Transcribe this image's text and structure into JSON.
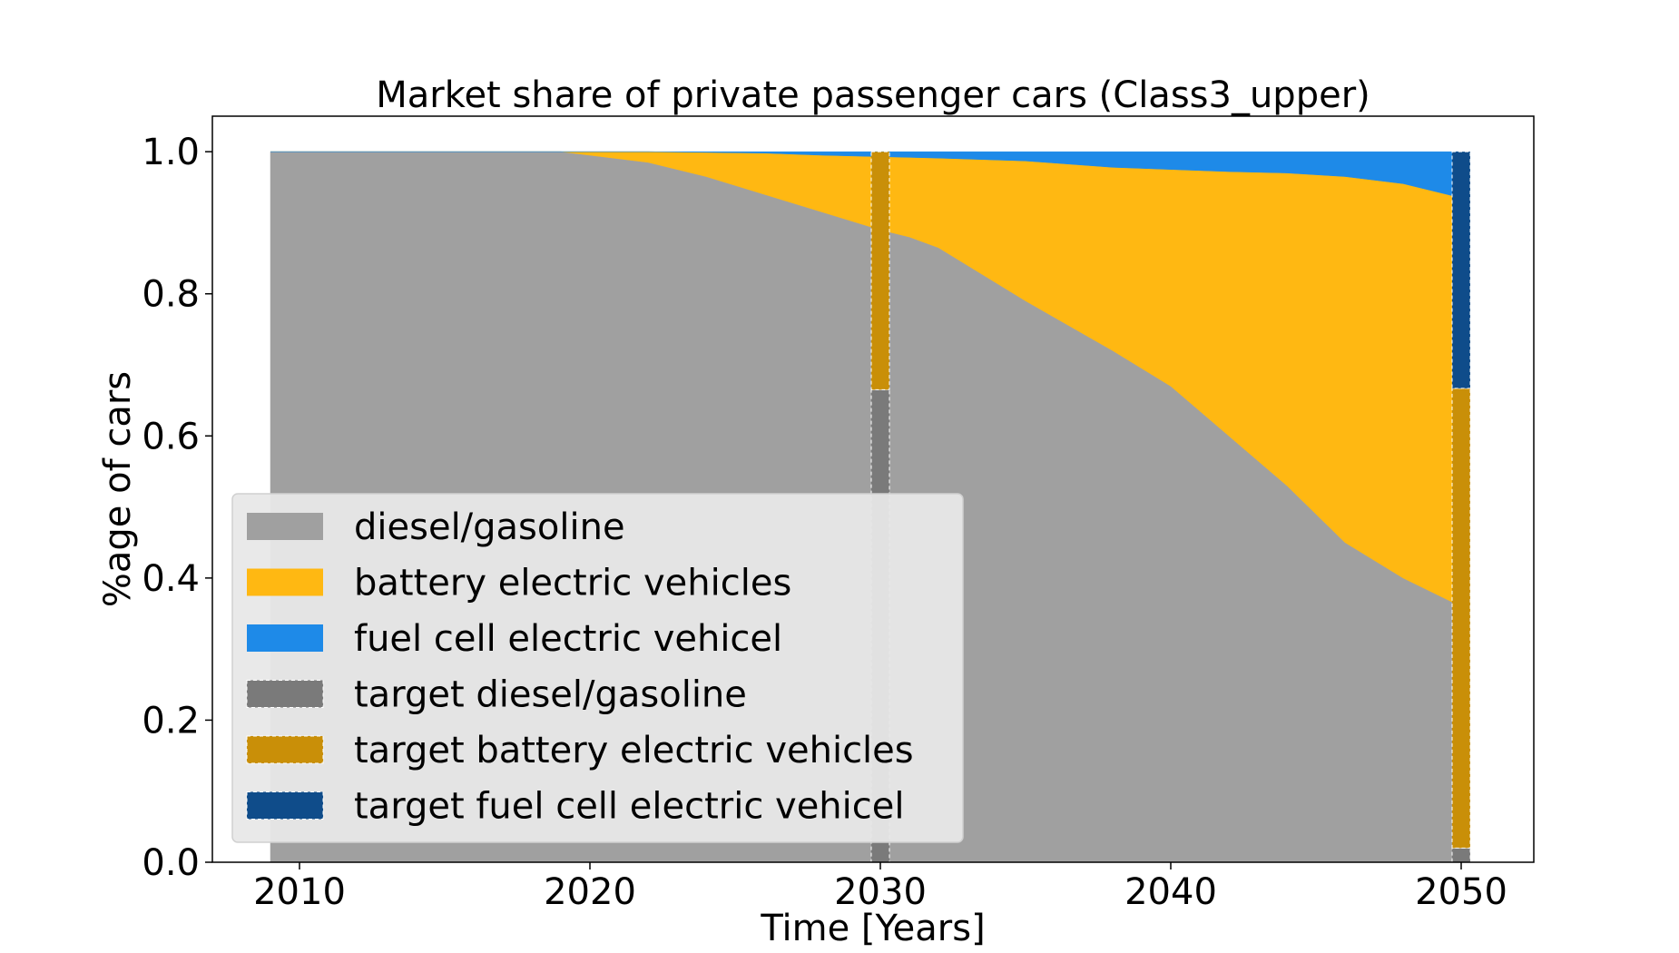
{
  "chart_data": {
    "type": "area",
    "title": "Market share of private passenger cars (Class3_upper)",
    "xlabel": "Time [Years]",
    "ylabel": "%age of cars",
    "xlim": [
      2007,
      2052.5
    ],
    "ylim": [
      0.0,
      1.05
    ],
    "xticks": [
      2010,
      2020,
      2030,
      2040,
      2050
    ],
    "xtick_labels": [
      "2010",
      "2020",
      "2030",
      "2040",
      "2050"
    ],
    "yticks": [
      0.0,
      0.2,
      0.4,
      0.6,
      0.8,
      1.0
    ],
    "ytick_labels": [
      "0.0",
      "0.2",
      "0.4",
      "0.6",
      "0.8",
      "1.0"
    ],
    "grid": false,
    "legend_position": "lower-left",
    "x": [
      2009,
      2019,
      2020,
      2022,
      2024,
      2026,
      2028,
      2030,
      2031,
      2032,
      2035,
      2038,
      2040,
      2042,
      2044,
      2046,
      2048,
      2050
    ],
    "series": [
      {
        "name": "diesel/gasoline",
        "color": "#a0a0a0",
        "values": [
          1.0,
          1.0,
          0.995,
          0.985,
          0.965,
          0.94,
          0.915,
          0.89,
          0.88,
          0.865,
          0.79,
          0.72,
          0.67,
          0.6,
          0.53,
          0.45,
          0.4,
          0.36
        ]
      },
      {
        "name": "battery electric vehicles",
        "color": "#ffb812",
        "values": [
          0.0,
          0.0,
          0.005,
          0.015,
          0.034,
          0.058,
          0.08,
          0.103,
          0.112,
          0.126,
          0.197,
          0.258,
          0.305,
          0.372,
          0.44,
          0.515,
          0.555,
          0.575
        ]
      },
      {
        "name": "fuel cell electric vehicel",
        "color": "#1e8ae8",
        "values": [
          0.0,
          0.0,
          0.0,
          0.0,
          0.001,
          0.002,
          0.005,
          0.007,
          0.008,
          0.009,
          0.013,
          0.022,
          0.025,
          0.028,
          0.03,
          0.035,
          0.045,
          0.065
        ]
      }
    ],
    "targets": [
      {
        "year": 2030,
        "values": {
          "target diesel/gasoline": 0.665,
          "target battery electric vehicles": 0.335,
          "target fuel cell electric vehicel": 0.0
        }
      },
      {
        "year": 2050,
        "values": {
          "target diesel/gasoline": 0.02,
          "target battery electric vehicles": 0.647,
          "target fuel cell electric vehicel": 0.333
        }
      }
    ],
    "target_series": [
      {
        "name": "target diesel/gasoline",
        "color": "#7a7a7a"
      },
      {
        "name": "target battery electric vehicles",
        "color": "#c98f08"
      },
      {
        "name": "target fuel cell electric vehicel",
        "color": "#0f4c8a"
      }
    ]
  }
}
